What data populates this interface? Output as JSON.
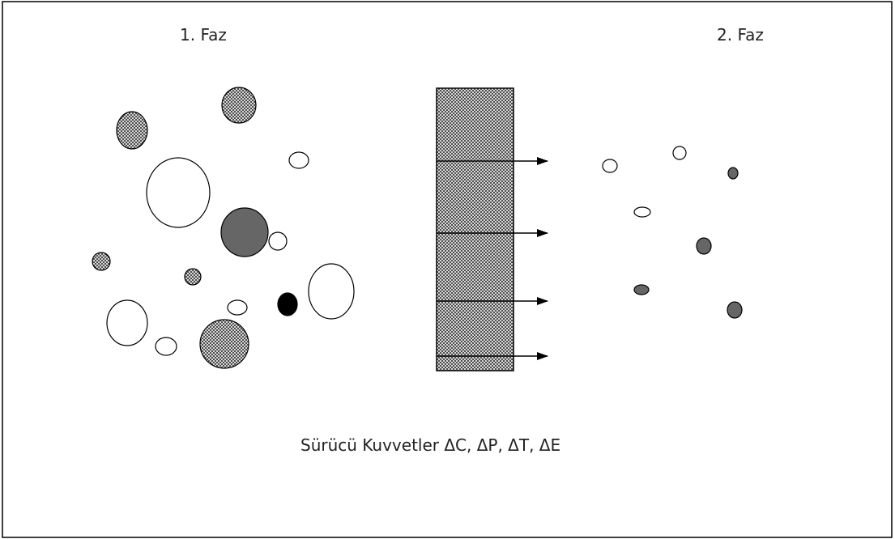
{
  "diagram": {
    "phase1_label": "1.  Faz",
    "phase2_label": "2.  Faz",
    "driving_forces_label": "Sürücü Kuvvetler ΔC,  ΔP,  ΔT,  ΔE"
  },
  "colors": {
    "border": "#000000",
    "dark_particle": "#666666",
    "hatched_particle": "#5a5a5a",
    "black_particle": "#000000",
    "white_particle": "#ffffff",
    "membrane_fill": "#ffffff",
    "membrane_pattern": "#333333"
  },
  "phase1_particles": [
    {
      "type": "hatched",
      "name": "particle-hatched-1"
    },
    {
      "type": "hatched",
      "name": "particle-hatched-2"
    },
    {
      "type": "white",
      "name": "particle-white-1"
    },
    {
      "type": "white",
      "name": "particle-white-2"
    },
    {
      "type": "dark",
      "name": "particle-dark-1"
    },
    {
      "type": "white",
      "name": "particle-white-3"
    },
    {
      "type": "hatched",
      "name": "particle-hatched-3"
    },
    {
      "type": "hatched",
      "name": "particle-hatched-4"
    },
    {
      "type": "white",
      "name": "particle-white-4"
    },
    {
      "type": "black",
      "name": "particle-black-1"
    },
    {
      "type": "white",
      "name": "particle-white-5"
    },
    {
      "type": "white",
      "name": "particle-white-6"
    },
    {
      "type": "white",
      "name": "particle-white-7"
    },
    {
      "type": "hatched",
      "name": "particle-hatched-5"
    }
  ],
  "phase2_particles": [
    {
      "type": "white",
      "name": "particle-white-8"
    },
    {
      "type": "white",
      "name": "particle-white-9"
    },
    {
      "type": "dark",
      "name": "particle-dark-2"
    },
    {
      "type": "white",
      "name": "particle-white-10"
    },
    {
      "type": "dark",
      "name": "particle-dark-3"
    },
    {
      "type": "dark",
      "name": "particle-dark-4"
    },
    {
      "type": "dark",
      "name": "particle-dark-5"
    }
  ],
  "arrow_count": 4
}
